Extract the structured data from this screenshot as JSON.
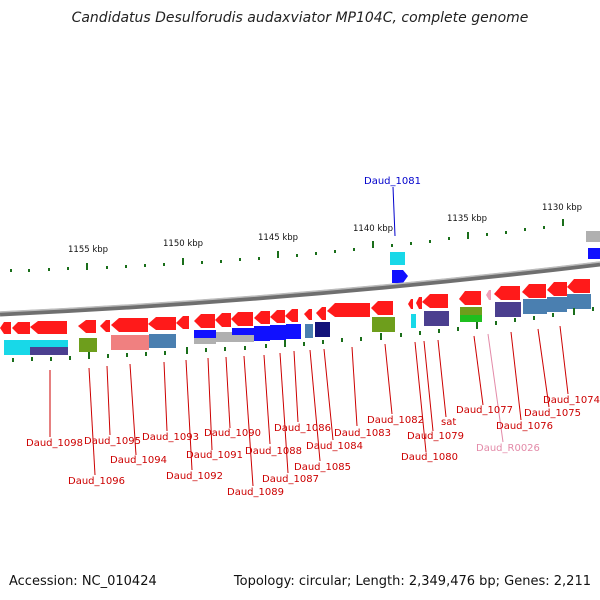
{
  "header": {
    "title": "Candidatus Desulforudis audaxviator MP104C, complete genome"
  },
  "footer": {
    "accession": "Accession: NC_010424",
    "summary": "Topology: circular; Length: 2,349,476 bp; Genes: 2,211"
  },
  "colors": {
    "backbone": "#808080",
    "gene_forward": "#ff1a1a",
    "cds_blue": "#1010ff",
    "cds_cyan": "#18d8e8",
    "cds_navy": "#12127a",
    "cds_olive": "#6e9e1c",
    "cds_steel": "#4a7fb0",
    "cds_pink": "#f08080",
    "cds_gray": "#b0b0b0",
    "cds_purple": "#4b3f8f",
    "cds_green": "#1fbf1f",
    "ticks": "#1a6e1a",
    "label_red": "#cc0000",
    "label_blue": "#0000cc",
    "label_pink": "#e38aa8"
  },
  "scale_labels": [
    "1155 kbp",
    "1150 kbp",
    "1145 kbp",
    "1140 kbp",
    "1135 kbp",
    "1130 kbp"
  ],
  "labels": {
    "top": "Daud_1081",
    "bottom": [
      "Daud_1098",
      "Daud_1096",
      "Daud_1095",
      "Daud_1094",
      "Daud_1093",
      "Daud_1092",
      "Daud_1091",
      "Daud_1090",
      "Daud_1089",
      "Daud_1088",
      "Daud_1087",
      "Daud_1086",
      "Daud_1085",
      "Daud_1084",
      "Daud_1083",
      "Daud_1082",
      "Daud_1080",
      "Daud_1079",
      "sat",
      "Daud_1077",
      "Daud_R0026",
      "Daud_1076",
      "Daud_1075",
      "Daud_1074"
    ]
  }
}
